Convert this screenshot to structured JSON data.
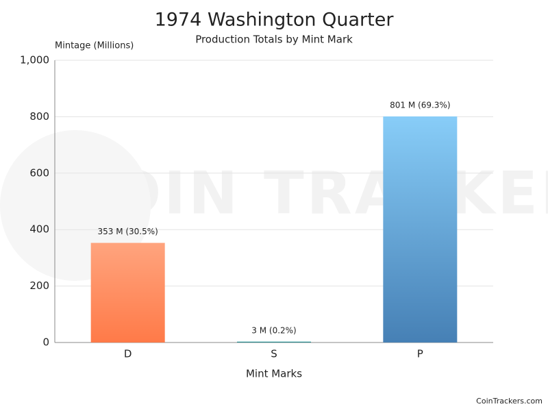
{
  "chart_data": {
    "type": "bar",
    "title": "1974 Washington Quarter",
    "subtitle": "Production Totals by Mint Mark",
    "y_label": "Mintage (Millions)",
    "x_label": "Mint Marks",
    "watermark": "COIN TRACKERS",
    "credit": "CoinTrackers.com",
    "categories": [
      "D",
      "S",
      "P"
    ],
    "values": [
      353,
      3,
      801
    ],
    "value_labels": [
      "353 M (30.5%)",
      "3 M (0.2%)",
      "801 M (69.3%)"
    ],
    "colors": [
      [
        "#ffa47e",
        "#ff7a48"
      ],
      [
        "#2a9d9d",
        "#2a7f86"
      ],
      [
        "#88cdf8",
        "#4680b5"
      ]
    ],
    "ylim": [
      0,
      1000
    ],
    "yticks": [
      0,
      200,
      400,
      600,
      800,
      {
        "value": 1000,
        "label": "1,000"
      }
    ],
    "grid": true
  }
}
